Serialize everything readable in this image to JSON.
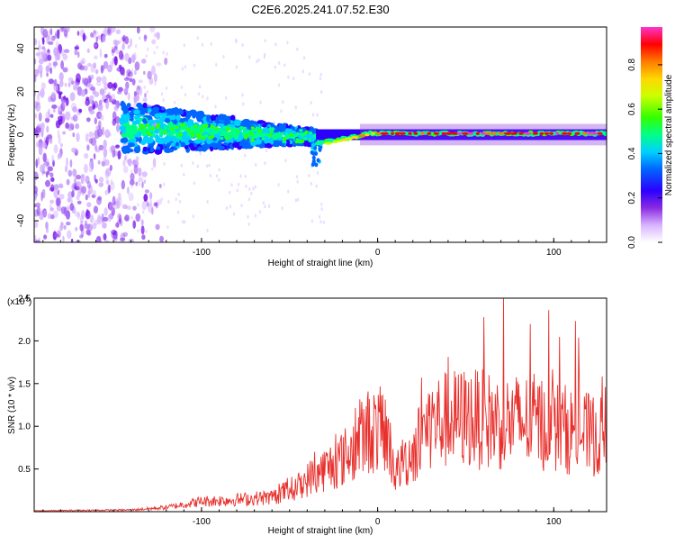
{
  "title": "C2E6.2025.241.07.52.E30",
  "chart_data": [
    {
      "type": "heatmap",
      "xlabel": "Height of straight line (km)",
      "ylabel": "Frequency (Hz)",
      "xlim": [
        -195,
        130
      ],
      "ylim": [
        -50,
        50
      ],
      "xticks": [
        -100,
        0,
        100
      ],
      "yticks": [
        -40,
        -20,
        0,
        20,
        40
      ],
      "colorbar": {
        "label": "Normalized spectral amplitude",
        "ticks": [
          0.0,
          0.2,
          0.4,
          0.6,
          0.8
        ],
        "range": [
          0,
          0.97
        ]
      },
      "grid": false,
      "regions": [
        {
          "name": "diffuse-noise",
          "x_range": [
            -195,
            -135
          ],
          "f_range": [
            -50,
            50
          ],
          "level": 0.1
        },
        {
          "name": "spread-band",
          "x_range": [
            -145,
            -35
          ],
          "f_range": [
            -12,
            12
          ],
          "level": 0.25
        },
        {
          "name": "narrow-band",
          "x_range": [
            -35,
            130
          ],
          "f_range": [
            -3,
            3
          ],
          "level": 0.85
        }
      ]
    },
    {
      "type": "line",
      "xlabel": "Height of straight line (km)",
      "ylabel": "SNR (10 * v/v)",
      "y_multiplier": "(x10^4)",
      "xlim": [
        -195,
        130
      ],
      "ylim": [
        0,
        2.5
      ],
      "xticks": [
        -100,
        0,
        100
      ],
      "yticks": [
        0.5,
        1.0,
        1.5,
        2.0,
        2.5
      ],
      "color": "#e8302c",
      "envelope": [
        {
          "x": -195,
          "y": 0.01
        },
        {
          "x": -140,
          "y": 0.02
        },
        {
          "x": -120,
          "y": 0.05
        },
        {
          "x": -100,
          "y": 0.12
        },
        {
          "x": -80,
          "y": 0.14
        },
        {
          "x": -60,
          "y": 0.17
        },
        {
          "x": -45,
          "y": 0.3
        },
        {
          "x": -35,
          "y": 0.45
        },
        {
          "x": -25,
          "y": 0.55
        },
        {
          "x": -15,
          "y": 0.7
        },
        {
          "x": -5,
          "y": 0.95
        },
        {
          "x": 5,
          "y": 0.95
        },
        {
          "x": 10,
          "y": 0.45
        },
        {
          "x": 20,
          "y": 0.7
        },
        {
          "x": 30,
          "y": 1.05
        },
        {
          "x": 50,
          "y": 1.1
        },
        {
          "x": 70,
          "y": 1.05
        },
        {
          "x": 90,
          "y": 1.05
        },
        {
          "x": 110,
          "y": 0.95
        },
        {
          "x": 130,
          "y": 0.85
        }
      ]
    }
  ]
}
